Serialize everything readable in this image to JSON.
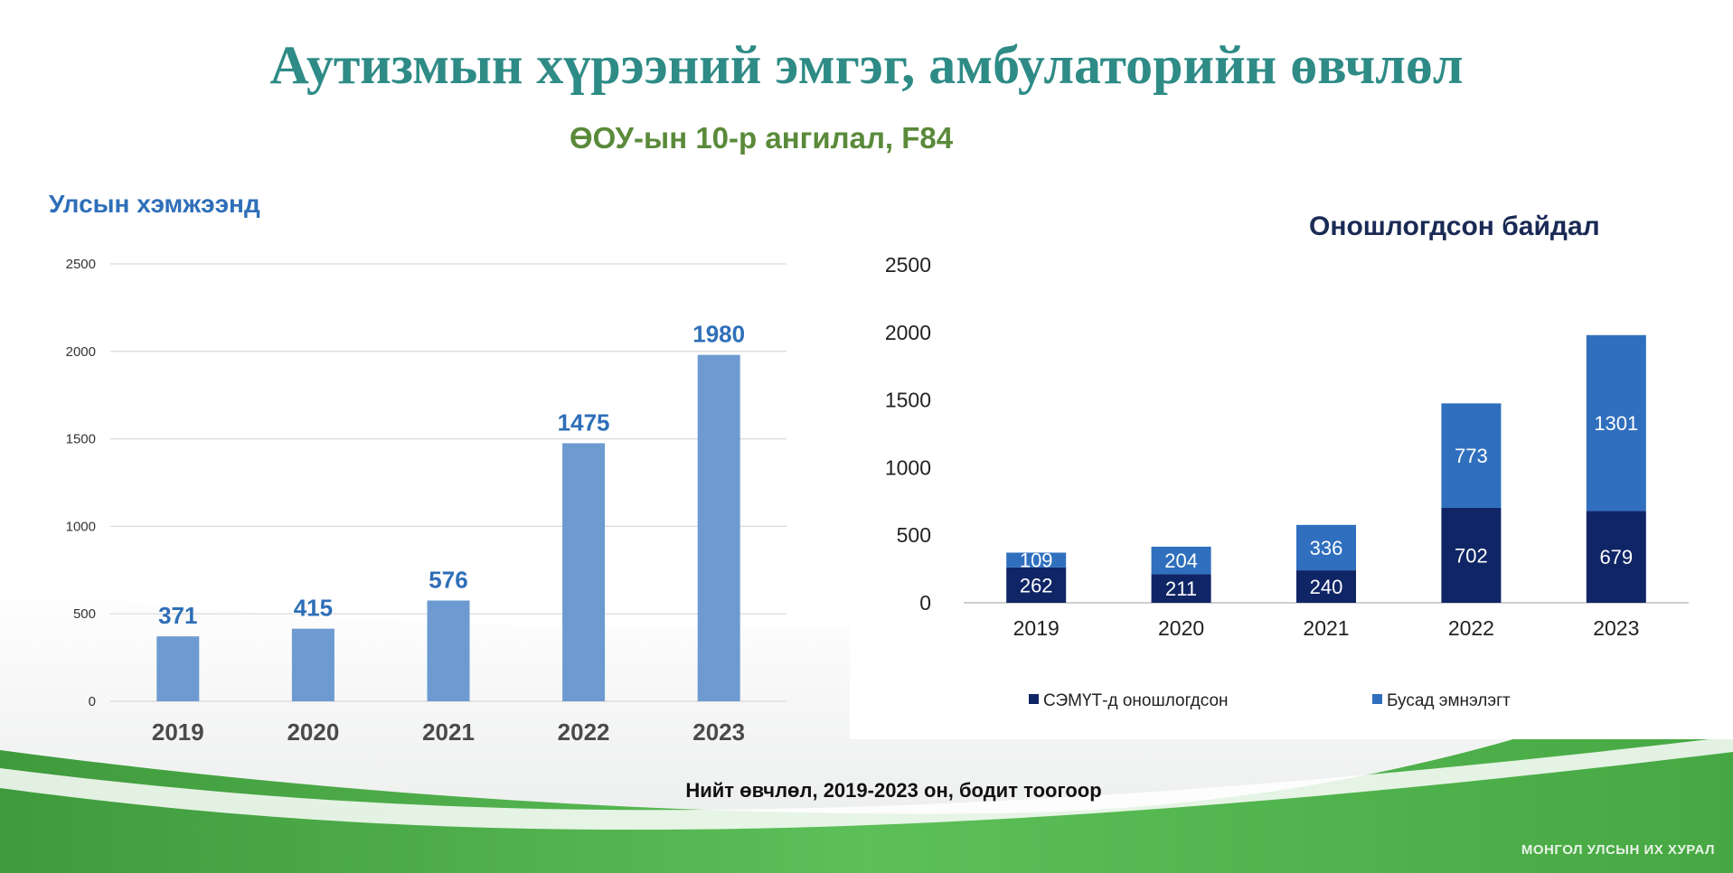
{
  "header": {
    "title": "Аутизмын хүрээний эмгэг, амбулаторийн өвчлөл",
    "subtitle": "ӨОУ-ын 10-р ангилал, F84"
  },
  "colors": {
    "title": "#2e8b86",
    "subtitle": "#5a8a3a",
    "bar_light": "#6d9bd1",
    "label_blue": "#2e6fb8",
    "dark_navy": "#102566",
    "mid_blue": "#2f6fbe",
    "green_wave": "#4fb548"
  },
  "left_chart": {
    "heading": "Улсын хэмжээнд"
  },
  "right_chart": {
    "heading": "Оношлогдсон байдал"
  },
  "footnote": "Нийт өвчлөл, 2019-2023 он, бодит тоогоор",
  "brand": "МОНГОЛ УЛСЫН ИХ ХУРАЛ",
  "chart_data": [
    {
      "type": "bar",
      "title": "Улсын хэмжээнд",
      "categories": [
        "2019",
        "2020",
        "2021",
        "2022",
        "2023"
      ],
      "values": [
        371,
        415,
        576,
        1475,
        1980
      ],
      "yticks": [
        0,
        500,
        1000,
        1500,
        2000,
        2500
      ],
      "ylim": [
        0,
        2500
      ],
      "grid": true,
      "data_labels": true
    },
    {
      "type": "bar",
      "stacked": true,
      "title": "Оношлогдсон байдал",
      "categories": [
        "2019",
        "2020",
        "2021",
        "2022",
        "2023"
      ],
      "series": [
        {
          "name": "СЭМҮТ-д оношлогдсон",
          "values": [
            262,
            211,
            240,
            702,
            679
          ],
          "color": "#102566"
        },
        {
          "name": "Бусад эмнэлэгт",
          "values": [
            109,
            204,
            336,
            773,
            1301
          ],
          "color": "#2f6fbe"
        }
      ],
      "yticks": [
        0,
        500,
        1000,
        1500,
        2000,
        2500
      ],
      "ylim": [
        0,
        2500
      ],
      "grid": false,
      "legend": "bottom",
      "data_labels": true
    }
  ]
}
